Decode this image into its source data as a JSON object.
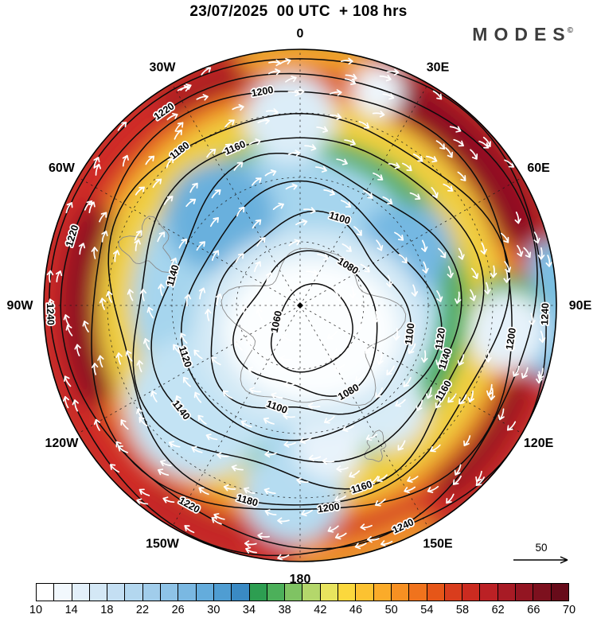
{
  "header": {
    "title": "23/07/2025  00 UTC  + 108 hrs",
    "brand": "MODES",
    "brand_mark": "©"
  },
  "map": {
    "longitude_labels": [
      "0",
      "30E",
      "60E",
      "90E",
      "120E",
      "150E",
      "180",
      "150W",
      "120W",
      "90W",
      "60W",
      "30W"
    ],
    "contour_levels": [
      1060,
      1080,
      1100,
      1120,
      1140,
      1160,
      1180,
      1200,
      1220,
      1240
    ],
    "contour_labels": [
      {
        "value": 1200,
        "angle": 350
      },
      {
        "value": 1220,
        "angle": 325
      },
      {
        "value": 1220,
        "angle": 287
      },
      {
        "value": 1180,
        "angle": 322
      },
      {
        "value": 1160,
        "angle": 337
      },
      {
        "value": 1100,
        "angle": 17
      },
      {
        "value": 1080,
        "angle": 32
      },
      {
        "value": 1060,
        "angle": 282
      },
      {
        "value": 1140,
        "angle": 286
      },
      {
        "value": 1120,
        "angle": 252
      },
      {
        "value": 1100,
        "angle": 97
      },
      {
        "value": 1120,
        "angle": 99
      },
      {
        "value": 1140,
        "angle": 108
      },
      {
        "value": 1240,
        "angle": 92
      },
      {
        "value": 1200,
        "angle": 99
      },
      {
        "value": 1160,
        "angle": 120
      },
      {
        "value": 1160,
        "angle": 162
      },
      {
        "value": 1180,
        "angle": 196
      },
      {
        "value": 1200,
        "angle": 172
      },
      {
        "value": 1220,
        "angle": 209
      },
      {
        "value": 1240,
        "angle": 155
      },
      {
        "value": 1240,
        "angle": 268
      },
      {
        "value": 1080,
        "angle": 150
      },
      {
        "value": 1100,
        "angle": 200
      },
      {
        "value": 1140,
        "angle": 232
      }
    ]
  },
  "reference_arrow": {
    "label": "50"
  },
  "colorbar": {
    "ticks": [
      10,
      14,
      18,
      22,
      26,
      30,
      34,
      38,
      42,
      46,
      50,
      54,
      58,
      62,
      66,
      70
    ],
    "colors": [
      "#ffffff",
      "#f2f8fd",
      "#e3f0fa",
      "#d4e8f6",
      "#c4dff3",
      "#b3d7ef",
      "#a1cdeb",
      "#8ec3e7",
      "#7ab8e2",
      "#64acdc",
      "#4f9dd2",
      "#3a8ac4",
      "#2d9e51",
      "#4cb05a",
      "#7fc363",
      "#b4d76b",
      "#e8e45e",
      "#fbd83d",
      "#fcc231",
      "#fbab29",
      "#f79022",
      "#f0731d",
      "#e65618",
      "#d93d1d",
      "#cb2b20",
      "#bb2125",
      "#a81b25",
      "#931522",
      "#7d101e",
      "#670b1a"
    ]
  },
  "chart_data": {
    "type": "heatmap",
    "title": "23/07/2025 00 UTC + 108 hrs",
    "brand": "MODES©",
    "projection": "pole-centered polar stereographic disc, longitude labels every 30 degrees around the rim",
    "shaded_field": {
      "name": "wind speed (filled contours)",
      "colorbar_ticks": [
        10,
        14,
        18,
        22,
        26,
        30,
        34,
        38,
        42,
        46,
        50,
        54,
        58,
        62,
        66,
        70
      ],
      "range": [
        10,
        70
      ],
      "palette": "white - light blue - blue - green - yellow - orange - red - dark red",
      "pattern": "calm white region over the pole at center; blue ring around it; green/yellow mid-latitude band; strong red jet streaks near the rim (strongest near 30E-60E, 90W-120W, 120E and 150W-180)"
    },
    "contour_field": {
      "name": "height contours (black lines)",
      "levels": [
        1060,
        1080,
        1100,
        1120,
        1140,
        1160,
        1180,
        1200,
        1220,
        1240
      ],
      "interval": 20,
      "pattern": "closed low centered on the pole: 1060 innermost rising outward to 1240 near the map edge"
    },
    "vector_field": {
      "name": "wind direction arrows (white), circumpolar westerly flow",
      "reference_vector": 50
    },
    "longitude_labels": [
      "0",
      "30E",
      "60E",
      "90E",
      "120E",
      "150E",
      "180",
      "150W",
      "120W",
      "90W",
      "60W",
      "30W"
    ],
    "legend_position": "bottom horizontal colorbar"
  }
}
